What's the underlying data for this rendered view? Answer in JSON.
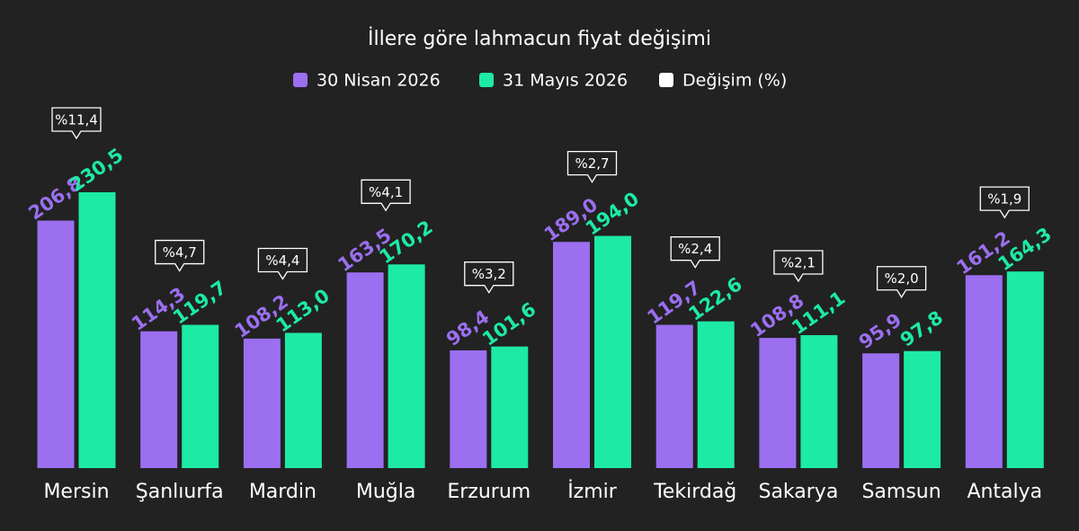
{
  "chart_data": {
    "type": "bar",
    "title": "İllere göre lahmacun fiyat değişimi",
    "categories": [
      "Mersin",
      "Şanlıurfa",
      "Mardin",
      "Muğla",
      "Erzurum",
      "İzmir",
      "Tekirdağ",
      "Sakarya",
      "Samsun",
      "Antalya"
    ],
    "series": [
      {
        "name": "30 Nisan 2026",
        "color": "#9b6ff0",
        "values": [
          206.8,
          114.3,
          108.2,
          163.5,
          98.4,
          189.0,
          119.7,
          108.8,
          95.9,
          161.2
        ],
        "value_labels": [
          "206,8",
          "114,3",
          "108,2",
          "163,5",
          "98,4",
          "189,0",
          "119,7",
          "108,8",
          "95,9",
          "161,2"
        ]
      },
      {
        "name": "31 Mayıs 2026",
        "color": "#1deaa5",
        "values": [
          230.5,
          119.7,
          113.0,
          170.2,
          101.6,
          194.0,
          122.6,
          111.1,
          97.8,
          164.3
        ],
        "value_labels": [
          "230,5",
          "119,7",
          "113,0",
          "170,2",
          "101,6",
          "194,0",
          "122,6",
          "111,1",
          "97,8",
          "164,3"
        ]
      },
      {
        "name": "Değişim (%)",
        "color": "#ffffff",
        "values": [
          11.4,
          4.7,
          4.4,
          4.1,
          3.2,
          2.7,
          2.4,
          2.1,
          2.0,
          1.9
        ],
        "value_labels": [
          "%11,4",
          "%4,7",
          "%4,4",
          "%4,1",
          "%3,2",
          "%2,7",
          "%2,4",
          "%2,1",
          "%2,0",
          "%1,9"
        ]
      }
    ]
  }
}
